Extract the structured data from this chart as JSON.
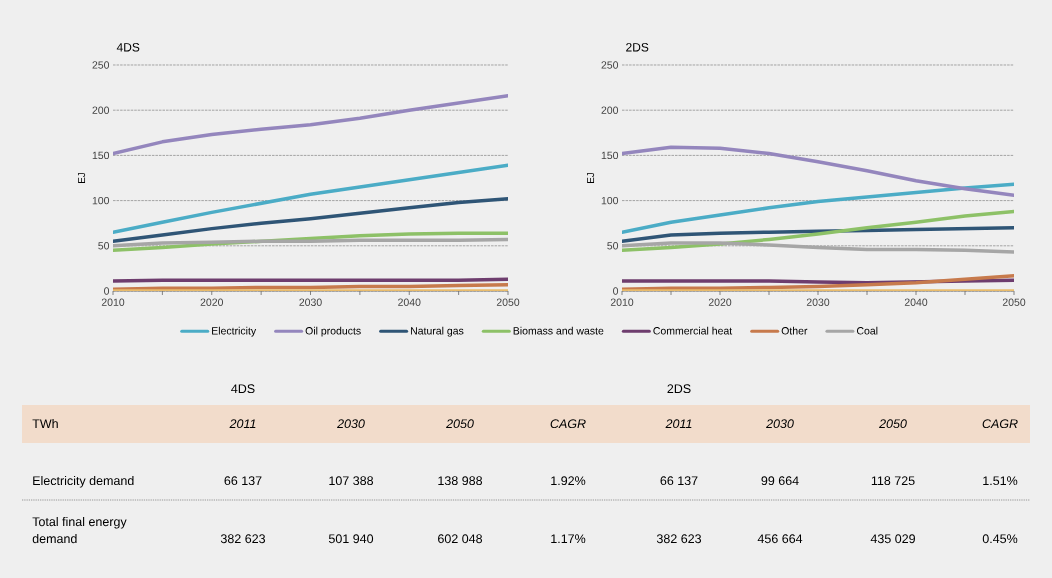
{
  "chart_data": [
    {
      "type": "line",
      "title": "4DS",
      "ylabel": "EJ",
      "xlim": [
        2010,
        2050
      ],
      "ylim": [
        0,
        250
      ],
      "xticks": [
        2010,
        {
          "value": 2015,
          "label": null
        },
        2020,
        {
          "value": 2025,
          "label": null
        },
        2030,
        {
          "value": 2035,
          "label": null
        },
        2040,
        {
          "value": 2045,
          "label": null
        },
        2050
      ],
      "yticks": [
        0,
        50,
        100,
        150,
        200,
        250
      ],
      "grid": "y",
      "legend": "bottom",
      "marker": "none",
      "line_style": "solid",
      "x": [
        2010,
        2015,
        2020,
        2025,
        2030,
        2035,
        2040,
        2045,
        2050
      ],
      "series": [
        {
          "name": "Electricity",
          "color": "#4bacc6",
          "values": [
            65,
            76,
            87,
            97,
            107,
            115,
            123,
            131,
            139
          ]
        },
        {
          "name": "Oil products",
          "color": "#9486bd",
          "values": [
            152,
            165,
            173,
            179,
            184,
            191,
            200,
            208,
            216
          ]
        },
        {
          "name": "Natural gas",
          "color": "#2f5576",
          "values": [
            55,
            62,
            69,
            75,
            80,
            86,
            92,
            98,
            102
          ]
        },
        {
          "name": "Biomass and waste",
          "color": "#8dc167",
          "values": [
            45,
            48,
            52,
            55,
            58,
            61,
            63,
            64,
            64
          ]
        },
        {
          "name": "Commercial heat",
          "color": "#6e3d6e",
          "values": [
            11,
            12,
            12,
            12,
            12,
            12,
            12,
            12,
            13
          ]
        },
        {
          "name": "Other",
          "color": "#c77a4c",
          "values": [
            2,
            3,
            3,
            4,
            4,
            5,
            5,
            6,
            7
          ]
        },
        {
          "name": "Coal",
          "color": "#a6a6a6",
          "values": [
            50,
            53,
            54,
            55,
            55,
            56,
            56,
            56,
            57
          ]
        },
        {
          "color": "#e9bc6c",
          "values": [
            0,
            0,
            0,
            0,
            0,
            0,
            0,
            0,
            0
          ]
        }
      ]
    },
    {
      "type": "line",
      "title": "2DS",
      "ylabel": "EJ",
      "xlim": [
        2010,
        2050
      ],
      "ylim": [
        0,
        250
      ],
      "xticks": [
        2010,
        {
          "value": 2015,
          "label": null
        },
        2020,
        {
          "value": 2025,
          "label": null
        },
        2030,
        {
          "value": 2035,
          "label": null
        },
        2040,
        {
          "value": 2045,
          "label": null
        },
        2050
      ],
      "yticks": [
        0,
        50,
        100,
        150,
        200,
        250
      ],
      "grid": "y",
      "marker": "none",
      "line_style": "solid",
      "x": [
        2010,
        2015,
        2020,
        2025,
        2030,
        2035,
        2040,
        2045,
        2050
      ],
      "series": [
        {
          "color": "#4bacc6",
          "values": [
            65,
            76,
            84,
            92,
            99,
            104,
            109,
            114,
            118
          ]
        },
        {
          "color": "#9486bd",
          "values": [
            152,
            159,
            158,
            152,
            143,
            133,
            122,
            113,
            106
          ]
        },
        {
          "color": "#2f5576",
          "values": [
            55,
            62,
            64,
            65,
            66,
            67,
            68,
            69,
            70
          ]
        },
        {
          "color": "#8dc167",
          "values": [
            45,
            48,
            52,
            57,
            63,
            70,
            76,
            83,
            88
          ]
        },
        {
          "color": "#6e3d6e",
          "values": [
            11,
            11,
            11,
            11,
            10,
            9,
            10,
            11,
            12
          ]
        },
        {
          "color": "#c77a4c",
          "values": [
            2,
            3,
            3,
            4,
            5,
            7,
            9,
            13,
            17
          ]
        },
        {
          "color": "#a6a6a6",
          "values": [
            50,
            53,
            53,
            51,
            48,
            46,
            46,
            45,
            43
          ]
        },
        {
          "color": "#e9bc6c",
          "values": [
            0,
            0,
            0,
            0,
            0,
            0,
            0,
            0,
            0
          ]
        }
      ]
    },
    {
      "type": "other",
      "annotations": [
        "4DS",
        "2DS",
        "TWh",
        "2011",
        "2030",
        "2050",
        "CAGR",
        "2011",
        "2030",
        "2050",
        "CAGR",
        "Electricity demand",
        "66 137",
        "107 388",
        "138 988",
        "1.92%",
        "66 137",
        "99 664",
        "118 725",
        "1.51%",
        "Total final energy demand",
        "382 623",
        "501 940",
        "602 048",
        "1.17%",
        "382 623",
        "456 664",
        "435 029",
        "0.45%"
      ]
    }
  ]
}
